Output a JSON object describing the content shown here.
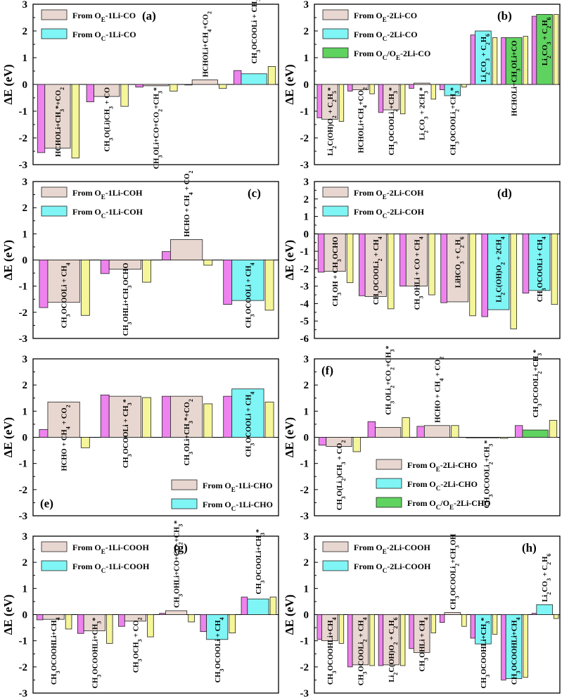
{
  "colors": {
    "magenta": "#ee82ee",
    "beige": "#e8d7d0",
    "cyan": "#7ff5f5",
    "green": "#5fd35f",
    "yellow": "#f5f59a",
    "bar_edge": "#222222"
  },
  "chart_data": [
    {
      "id": "a",
      "panel_label": "(a)",
      "type": "bar",
      "ylabel": "ΔE (eV)",
      "ylim": [
        -3,
        3
      ],
      "yticks": [
        "-3",
        "-2",
        "-1",
        "0",
        "1",
        "2",
        "3"
      ],
      "legend": [
        {
          "text": "From O",
          "sub": "E",
          "suffix": "-1Li-CO",
          "color": "#e8d7d0"
        },
        {
          "text": "From O",
          "sub": "C",
          "suffix": "-1Li-CO",
          "color": "#7ff5f5"
        }
      ],
      "legend_position": "top-left",
      "groups": [
        {
          "label": "HCHOLi+CH3*+CO2",
          "label_pos": "below",
          "magenta": -2.55,
          "main": -2.38,
          "main_series": "From OE-1Li-CO",
          "yellow": -2.75
        },
        {
          "label": "CH3O(Li)CH3 + CO",
          "label_pos": "below",
          "magenta": -0.65,
          "main": -0.45,
          "main_series": "From OE-1Li-CO",
          "yellow": -0.82
        },
        {
          "label": "CH3OLi+CO+CO2+CH3*",
          "label_pos": "below",
          "magenta": -0.1,
          "main": -0.05,
          "main_series": "From OE-1Li-CO",
          "yellow": -0.25
        },
        {
          "label": "HCHOLi+CH4+CO2",
          "label_pos": "above",
          "magenta": 0.0,
          "main": 0.17,
          "main_series": "From OE-1Li-CO",
          "yellow": -0.15
        },
        {
          "label": "CH3OCOOLi + CH3*",
          "label_pos": "above",
          "magenta": 0.52,
          "main": 0.4,
          "main_series": "From OC-1Li-CO",
          "yellow": 0.67
        }
      ]
    },
    {
      "id": "b",
      "panel_label": "(b)",
      "type": "bar",
      "ylabel": "ΔE (eV)",
      "ylim": [
        -3,
        3
      ],
      "yticks": [
        "-3",
        "-2",
        "-1",
        "0",
        "1",
        "2",
        "3"
      ],
      "legend": [
        {
          "text": "From O",
          "sub": "E",
          "suffix": "-2Li-CO",
          "color": "#e8d7d0"
        },
        {
          "text": "From O",
          "sub": "C",
          "suffix": "-2Li-CO",
          "color": "#7ff5f5"
        },
        {
          "text": "From O",
          "sub": "C",
          "mid": "/O",
          "sub2": "E",
          "suffix": "-2Li-CO",
          "color": "#5fd35f"
        }
      ],
      "legend_position": "top-left",
      "groups": [
        {
          "label": "Li2C(OH)O2 + C2H5*",
          "label_pos": "below",
          "magenta": -1.25,
          "main": -1.3,
          "main_series": "From OE-2Li-CO",
          "yellow": -1.38
        },
        {
          "label": "HCHOLi+CH4+CO2",
          "label_pos": "below",
          "magenta": -0.25,
          "main": -0.2,
          "main_series": "From OE-2Li-CO",
          "yellow": -0.35
        },
        {
          "label": "CH3OCOOLi2+CH3*",
          "label_pos": "below",
          "magenta": -1.05,
          "main": -0.95,
          "main_series": "From OE-2Li-CO",
          "yellow": -1.1
        },
        {
          "label": "Li2CO3 + 2CH3*",
          "label_pos": "below",
          "magenta": -0.15,
          "main": 0.05,
          "main_series": "From OE-2Li-CO",
          "yellow": -0.55
        },
        {
          "label": "CH3OCOOLi2+CH3*",
          "label_pos": "below",
          "magenta": -0.2,
          "main": -0.42,
          "main_series": "From OC-2Li-CO",
          "yellow": -0.1
        },
        {
          "label": "Li2CO3 + C2H6",
          "label_pos": "inside",
          "magenta": 1.85,
          "main": 2.0,
          "main_series": "From OC-2Li-CO",
          "yellow": 1.75
        },
        {
          "label": "HCHOLi+CH3OLi+CO",
          "label_pos": "inside",
          "magenta": 1.75,
          "main": 1.75,
          "main_series": "From OC/OE-2Li-CO",
          "yellow": 1.8
        },
        {
          "label": "Li2CO3 + C2H6",
          "label_pos": "inside",
          "magenta": 2.55,
          "main": 2.62,
          "main_series": "From OC/OE-2Li-CO",
          "yellow": 2.62
        }
      ]
    },
    {
      "id": "c",
      "panel_label": "(c)",
      "type": "bar",
      "ylabel": "ΔE (eV)",
      "ylim": [
        -3,
        3
      ],
      "yticks": [
        "-3",
        "-2",
        "-1",
        "0",
        "1",
        "2",
        "3"
      ],
      "legend": [
        {
          "text": "From O",
          "sub": "E",
          "suffix": "-1Li-COH",
          "color": "#e8d7d0"
        },
        {
          "text": "From O",
          "sub": "C",
          "suffix": "-1Li-COH",
          "color": "#7ff5f5"
        }
      ],
      "legend_position": "top-left",
      "groups": [
        {
          "label": "CH3OCOOLi + CH4",
          "label_pos": "below",
          "magenta": -1.82,
          "main": -1.62,
          "main_series": "From OE-1Li-COH",
          "yellow": -2.12
        },
        {
          "label": "CH3OHLi+CH3OCHO",
          "label_pos": "below",
          "magenta": -0.52,
          "main": -0.35,
          "main_series": "From OE-1Li-COH",
          "yellow": -0.85
        },
        {
          "label": "HCHO + CH4 + CO2",
          "label_pos": "above",
          "magenta": 0.32,
          "main": 0.78,
          "main_series": "From OE-1Li-COH",
          "yellow": -0.2
        },
        {
          "label": "CH3OCOOLi + CH4",
          "label_pos": "below",
          "magenta": -1.7,
          "main": -1.55,
          "main_series": "From OC-1Li-COH",
          "yellow": -1.92
        }
      ]
    },
    {
      "id": "d",
      "panel_label": "(d)",
      "type": "bar",
      "ylabel": "ΔE (eV)",
      "ylim": [
        -6,
        3
      ],
      "yticks": [
        "-6",
        "-5",
        "-4",
        "-3",
        "-2",
        "-1",
        "0",
        "1",
        "2",
        "3"
      ],
      "legend": [
        {
          "text": "From O",
          "sub": "E",
          "suffix": "-2Li-COH",
          "color": "#e8d7d0"
        },
        {
          "text": "From O",
          "sub": "C",
          "suffix": "-2Li-COH",
          "color": "#7ff5f5"
        }
      ],
      "legend_position": "top-left",
      "groups": [
        {
          "label": "CH3OH + CH3OCHO",
          "label_pos": "inside",
          "magenta": -2.2,
          "main": -2.15,
          "main_series": "From OE-2Li-COH",
          "yellow": -2.8
        },
        {
          "label": "CH3OCOOLi2 + CH4",
          "label_pos": "inside",
          "magenta": -3.55,
          "main": -3.6,
          "main_series": "From OE-2Li-COH",
          "yellow": -4.3
        },
        {
          "label": "CH3OHLi + CO + CH4",
          "label_pos": "inside",
          "magenta": -3.0,
          "main": -3.0,
          "main_series": "From OE-2Li-COH",
          "yellow": -3.5
        },
        {
          "label": "LiHCO3 + C2H6",
          "label_pos": "inside",
          "magenta": -3.95,
          "main": -3.9,
          "main_series": "From OE-2Li-COH",
          "yellow": -4.7
        },
        {
          "label": "Li2C(OH)O2 + 2CH4",
          "label_pos": "inside",
          "magenta": -4.75,
          "main": -4.35,
          "main_series": "From OC-2Li-COH",
          "yellow": -5.45
        },
        {
          "label": "CH3OCOOLi + CH4",
          "label_pos": "inside",
          "magenta": -3.4,
          "main": -3.25,
          "main_series": "From OC-2Li-COH",
          "yellow": -4.05
        }
      ]
    },
    {
      "id": "e",
      "panel_label": "(e)",
      "type": "bar",
      "ylabel": "ΔE (eV)",
      "ylim": [
        -3,
        3
      ],
      "yticks": [
        "-3",
        "-2",
        "-1",
        "0",
        "1",
        "2",
        "3"
      ],
      "legend": [
        {
          "text": "From O",
          "sub": "E",
          "suffix": "-1Li-CHO",
          "color": "#e8d7d0"
        },
        {
          "text": "From O",
          "sub": "C",
          "suffix": "-1Li-CHO",
          "color": "#7ff5f5"
        }
      ],
      "legend_position": "bottom-right",
      "panel_label_position": "bottom-left",
      "groups": [
        {
          "label": "HCHO + CH4 + CO2",
          "label_pos": "inside",
          "magenta": 0.3,
          "main": 1.35,
          "main_series": "From OE-1Li-CHO",
          "yellow": -0.4
        },
        {
          "label": "CH3OCOOLi + CH3*",
          "label_pos": "inside",
          "magenta": 1.62,
          "main": 1.57,
          "main_series": "From OE-1Li-CHO",
          "yellow": 1.52
        },
        {
          "label": "CH3OLi+CH3*+CO2",
          "label_pos": "inside",
          "magenta": 1.57,
          "main": 1.57,
          "main_series": "From OE-1Li-CHO",
          "yellow": 1.28
        },
        {
          "label": "CH3OCOOLi + CH4",
          "label_pos": "inside",
          "magenta": 1.57,
          "main": 1.85,
          "main_series": "From OC-1Li-CHO",
          "yellow": 1.35
        }
      ]
    },
    {
      "id": "f",
      "panel_label": "(f)",
      "type": "bar",
      "ylabel": "ΔE (eV)",
      "ylim": [
        -3,
        3
      ],
      "yticks": [
        "-3",
        "-2",
        "-1",
        "0",
        "1",
        "2",
        "3"
      ],
      "legend": [
        {
          "text": "From O",
          "sub": "E",
          "suffix": "-2Li-CHO",
          "color": "#e8d7d0"
        },
        {
          "text": "From O",
          "sub": "C",
          "suffix": "-2Li-CHO",
          "color": "#7ff5f5"
        },
        {
          "text": "From O",
          "sub": "C",
          "mid": "/O",
          "sub2": "E",
          "suffix": "-2Li-CHO",
          "color": "#5fd35f"
        }
      ],
      "legend_position": "bottom-left",
      "panel_label_position": "top-left",
      "groups": [
        {
          "label": "CH3O(Li2)CH3 + CO2",
          "label_pos": "below",
          "magenta": -0.3,
          "main": -0.35,
          "main_series": "From OE-2Li-CHO",
          "yellow": -0.55
        },
        {
          "label": "CH3OLi2+CO2+CH3*",
          "label_pos": "above",
          "magenta": 0.6,
          "main": 0.38,
          "main_series": "From OE-2Li-CHO",
          "yellow": 0.75
        },
        {
          "label": "HCHO + CH4 + CO2",
          "label_pos": "above",
          "magenta": 0.42,
          "main": 0.45,
          "main_series": "From OE-2Li-CHO",
          "yellow": 0.45
        },
        {
          "label": "CH3OCOOLi2+CH3*",
          "label_pos": "below",
          "magenta": 0.0,
          "main": -0.02,
          "main_series": "From OC-2Li-CHO",
          "yellow": -0.04
        },
        {
          "label": "CH3OCOOLi2+CH3*",
          "label_pos": "above",
          "magenta": 0.45,
          "main": 0.28,
          "main_series": "From OC/OE-2Li-CHO",
          "yellow": 0.65
        }
      ]
    },
    {
      "id": "g",
      "panel_label": "(g)",
      "type": "bar",
      "ylabel": "ΔE (eV)",
      "ylim": [
        -3,
        3
      ],
      "yticks": [
        "-3",
        "-2",
        "-1",
        "0",
        "1",
        "2",
        "3"
      ],
      "legend": [
        {
          "text": "From O",
          "sub": "E",
          "suffix": "-1Li-COOH",
          "color": "#e8d7d0"
        },
        {
          "text": "From O",
          "sub": "C",
          "suffix": "-1Li-COOH",
          "color": "#7ff5f5"
        }
      ],
      "legend_position": "top-left",
      "groups": [
        {
          "label": "CH3OCOOHLi+CH4",
          "label_pos": "below",
          "magenta": -0.2,
          "main": -0.18,
          "main_series": "From OE-1Li-COOH",
          "yellow": -0.55
        },
        {
          "label": "CH3OCOOHLi+CH3*",
          "label_pos": "below",
          "magenta": -0.72,
          "main": -0.62,
          "main_series": "From OE-1Li-COOH",
          "yellow": -1.1
        },
        {
          "label": "CH3OCH3 + CO2",
          "label_pos": "below",
          "magenta": -0.45,
          "main": -0.25,
          "main_series": "From OE-1Li-COOH",
          "yellow": -0.85
        },
        {
          "label": "CH3OHLi+CO+CO2+CH3*",
          "label_pos": "above",
          "magenta": 0.05,
          "main": 0.15,
          "main_series": "From OE-1Li-COOH",
          "yellow": -0.28
        },
        {
          "label": "CH3OCOOLi + CH4",
          "label_pos": "below",
          "magenta": -0.65,
          "main": -0.95,
          "main_series": "From OC-1Li-COOH",
          "yellow": -0.7
        },
        {
          "label": "CH3OCOOLi+CH3*",
          "label_pos": "above",
          "magenta": 0.67,
          "main": 0.6,
          "main_series": "From OC-1Li-COOH",
          "yellow": 0.67
        }
      ]
    },
    {
      "id": "h",
      "panel_label": "(h)",
      "type": "bar",
      "ylabel": "ΔE (eV)",
      "ylim": [
        -3,
        3
      ],
      "yticks": [
        "-3",
        "-2",
        "-1",
        "0",
        "1",
        "2",
        "3"
      ],
      "legend": [
        {
          "text": "From O",
          "sub": "E",
          "suffix": "-2Li-COOH",
          "color": "#e8d7d0"
        },
        {
          "text": "From O",
          "sub": "C",
          "suffix": "-2Li-COOH",
          "color": "#7ff5f5"
        }
      ],
      "legend_position": "top-left",
      "groups": [
        {
          "label": "CH3OCOOHLi+CH4",
          "label_pos": "below",
          "magenta": -0.95,
          "main": -1.0,
          "main_series": "From OE-2Li-COOH",
          "yellow": -1.1
        },
        {
          "label": "CH3OCOOLi2 + CH4",
          "label_pos": "below",
          "magenta": -2.0,
          "main": -1.92,
          "main_series": "From OE-2Li-COOH",
          "yellow": -1.95
        },
        {
          "label": "Li2C(OH)O2 + C2H6",
          "label_pos": "below",
          "magenta": -1.95,
          "main": -1.92,
          "main_series": "From OE-2Li-COOH",
          "yellow": -1.95
        },
        {
          "label": "CH3OHLi + CH4",
          "label_pos": "below",
          "magenta": -1.3,
          "main": -1.45,
          "main_series": "From OE-2Li-COOH",
          "yellow": -0.7
        },
        {
          "label": "CH3OCOOLi2+CH3OH",
          "label_pos": "above",
          "magenta": -0.3,
          "main": 0.08,
          "main_series": "From OE-2Li-COOH",
          "yellow": -0.45
        },
        {
          "label": "CH3OCOOHLi+CH3*",
          "label_pos": "below",
          "magenta": -0.9,
          "main": -1.12,
          "main_series": "From OC-2Li-COOH",
          "yellow": -0.75
        },
        {
          "label": "CH3OCOOHLi+CH4",
          "label_pos": "below",
          "magenta": -2.5,
          "main": -2.45,
          "main_series": "From OC-2Li-COOH",
          "yellow": -2.4
        },
        {
          "label": "Li2CO3 + C2H6",
          "label_pos": "above",
          "magenta": 0.05,
          "main": 0.38,
          "main_series": "From OC-2Li-COOH",
          "yellow": -0.15
        }
      ]
    }
  ]
}
